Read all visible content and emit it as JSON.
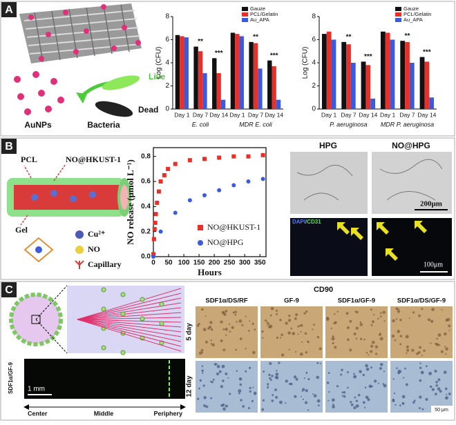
{
  "panel_labels": [
    "A",
    "B",
    "C"
  ],
  "panel_a": {
    "labels": [
      "Live",
      "Dead",
      "AuNPs",
      "Bacteria"
    ]
  },
  "panel_b": {
    "labels": [
      "PCL",
      "NO@HKUST-1",
      "Gel",
      "Cu²⁺",
      "NO",
      "Capillary"
    ],
    "image_titles": [
      "HPG",
      "NO@HPG"
    ],
    "scale_bars": [
      "200μm",
      "100μm"
    ],
    "stain": [
      "DAPI",
      "/CD31"
    ]
  },
  "panel_c": {
    "stain": "CD90",
    "columns": [
      "SDF1α/DS/RF",
      "GF-9",
      "SDF1α/GF-9",
      "SDF1α/DS/GF-9"
    ],
    "rows": [
      "5 day",
      "12 day"
    ],
    "strip_label": "SDF1α/GF-9",
    "strip_scale": "1 mm",
    "strip_axis": [
      "Center",
      "Middle",
      "Periphery"
    ],
    "scale_bar": "50 μm"
  },
  "chart_data": [
    {
      "type": "bar",
      "ylabel": "Log (CFU)",
      "categories": [
        "Day 1",
        "Day 7",
        "Day 14",
        "Day 1",
        "Day 7",
        "Day 14"
      ],
      "group_labels": [
        "E. coli",
        "MDR E. coli"
      ],
      "series": [
        {
          "name": "Gauze",
          "color": "#111111",
          "values": [
            6.4,
            5.4,
            4.4,
            6.6,
            5.8,
            4.2
          ]
        },
        {
          "name": "PCL/Gelatin",
          "color": "#e8302a",
          "values": [
            6.3,
            5.0,
            3.1,
            6.5,
            5.7,
            3.7
          ]
        },
        {
          "name": "Au_APA",
          "color": "#3b5bdb",
          "values": [
            6.2,
            3.1,
            0.8,
            6.3,
            3.5,
            0.8
          ]
        }
      ],
      "significance": [
        null,
        "**",
        "***",
        null,
        "**",
        "***"
      ],
      "ylim": [
        0,
        8
      ],
      "yticks": [
        0,
        2,
        4,
        6,
        8
      ],
      "legend": "upper right"
    },
    {
      "type": "bar",
      "ylabel": "Log (CFU)",
      "categories": [
        "Day 1",
        "Day 7",
        "Day 14",
        "Day 1",
        "Day 7",
        "Day 14"
      ],
      "group_labels": [
        "P. aeruginosa",
        "MDR P. aeruginosa"
      ],
      "series": [
        {
          "name": "Gauze",
          "color": "#111111",
          "values": [
            6.5,
            5.8,
            4.1,
            6.7,
            5.9,
            4.5
          ]
        },
        {
          "name": "PCL/Gelatin",
          "color": "#e8302a",
          "values": [
            6.7,
            5.6,
            3.8,
            6.6,
            5.8,
            4.1
          ]
        },
        {
          "name": "Au_APA",
          "color": "#3b5bdb",
          "values": [
            6.0,
            4.0,
            0.9,
            6.0,
            4.0,
            1.0
          ]
        }
      ],
      "significance": [
        null,
        "**",
        "***",
        null,
        "**",
        "***"
      ],
      "ylim": [
        0,
        8
      ],
      "yticks": [
        0,
        2,
        4,
        6,
        8
      ],
      "legend": "upper right"
    },
    {
      "type": "scatter",
      "xlabel": "Hours",
      "ylabel": "NO release (μmol L⁻¹)",
      "series": [
        {
          "name": "NO@HKUST-1",
          "color": "#e8302a",
          "marker": "square",
          "x": [
            0,
            2,
            4,
            6,
            8,
            12,
            18,
            24,
            36,
            48,
            72,
            120,
            168,
            216,
            264,
            312,
            360
          ],
          "values": [
            0.02,
            0.14,
            0.22,
            0.27,
            0.34,
            0.43,
            0.52,
            0.6,
            0.65,
            0.7,
            0.74,
            0.77,
            0.78,
            0.79,
            0.8,
            0.8,
            0.81
          ]
        },
        {
          "name": "NO@HPG",
          "color": "#3b5bdb",
          "marker": "circle",
          "x": [
            0,
            24,
            72,
            120,
            168,
            216,
            264,
            312,
            360
          ],
          "values": [
            0,
            0.2,
            0.35,
            0.45,
            0.49,
            0.53,
            0.57,
            0.6,
            0.62
          ]
        }
      ],
      "xlim": [
        0,
        370
      ],
      "xticks": [
        0,
        50,
        100,
        150,
        200,
        250,
        300,
        350
      ],
      "ylim": [
        0,
        0.87
      ],
      "yticks": [
        {
          "value": 0,
          "label": "0.0"
        },
        0.2,
        0.4,
        0.6,
        0.8
      ],
      "legend": "lower right"
    }
  ]
}
